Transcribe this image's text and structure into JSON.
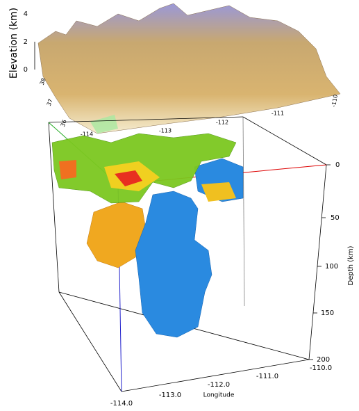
{
  "elevation_panel": {
    "axis_label": "Elevation (km)",
    "ticks": [
      "4",
      "2",
      "0"
    ],
    "latitude_ticks": [
      "38",
      "37",
      "36"
    ],
    "longitude_ticks": [
      "-114",
      "-113",
      "-112",
      "-111",
      "-110"
    ]
  },
  "volume_panel": {
    "depth_label": "Depth (km)",
    "depth_ticks": [
      "0",
      "50",
      "100",
      "150",
      "200"
    ],
    "longitude_label": "Longitude",
    "longitude_ticks": [
      "-114.0",
      "-113.0",
      "-112.0",
      "-111.0",
      "-110.0"
    ]
  }
}
